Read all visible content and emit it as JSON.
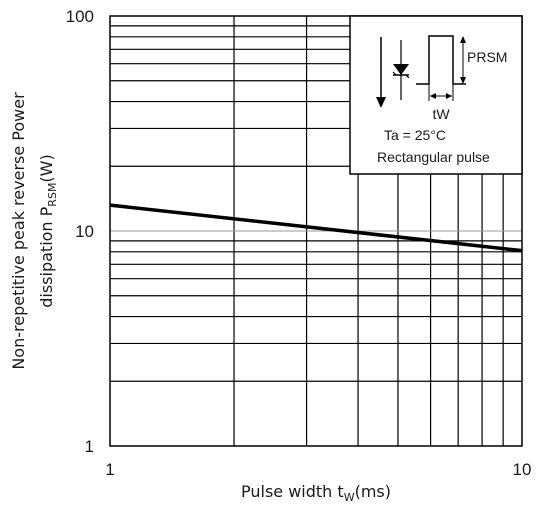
{
  "chart_data": {
    "type": "line",
    "x_scale": "log",
    "y_scale": "log",
    "xlim": [
      1,
      10
    ],
    "ylim": [
      1,
      100
    ],
    "x_ticks": [
      "1",
      "10"
    ],
    "y_ticks": [
      "1",
      "10",
      "100"
    ],
    "xlabel": "Pulse width  t",
    "xlabel_sub": "W",
    "xlabel_suffix": "(ms)",
    "ylabel_line1": "Non-repetitive peak reverse Power",
    "ylabel_line2": "dissipation P",
    "ylabel_sub": "RSM",
    "ylabel_suffix": "(W)",
    "grid": true,
    "series": [
      {
        "x": [
          1,
          10
        ],
        "y": [
          13.2,
          8.1
        ]
      }
    ],
    "inset": {
      "prsm_label": "PRSM",
      "tw_label": "tW",
      "ta_label": "Ta = 25°C",
      "pulse_label": "Rectangular pulse"
    }
  }
}
